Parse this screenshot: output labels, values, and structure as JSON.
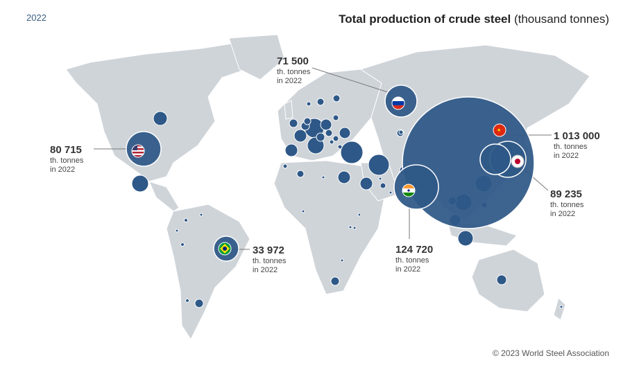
{
  "header": {
    "year": "2022",
    "title_bold": "Total production of crude steel",
    "title_unit": "(thousand tonnes)"
  },
  "footer": {
    "copyright": "© 2023 World Steel Association"
  },
  "colors": {
    "land": "#cfd4d9",
    "bubble": "#2e5887",
    "bubble_stroke": "#ffffff",
    "leader": "#777777"
  },
  "callouts": [
    {
      "country": "China",
      "value": "1 013 000",
      "unit": "th. tonnes",
      "period": "in 2022",
      "flag": "china-flag-icon"
    },
    {
      "country": "India",
      "value": "124 720",
      "unit": "th. tonnes",
      "period": "in 2022",
      "flag": "india-flag-icon"
    },
    {
      "country": "Japan",
      "value": "89 235",
      "unit": "th. tonnes",
      "period": "in 2022",
      "flag": "japan-flag-icon"
    },
    {
      "country": "United States",
      "value": "80 715",
      "unit": "th. tonnes",
      "period": "in 2022",
      "flag": "usa-flag-icon"
    },
    {
      "country": "Russia",
      "value": "71 500",
      "unit": "th. tonnes",
      "period": "in 2022",
      "flag": "russia-flag-icon"
    },
    {
      "country": "Brazil",
      "value": "33 972",
      "unit": "th. tonnes",
      "period": "in 2022",
      "flag": "brazil-flag-icon"
    }
  ]
}
